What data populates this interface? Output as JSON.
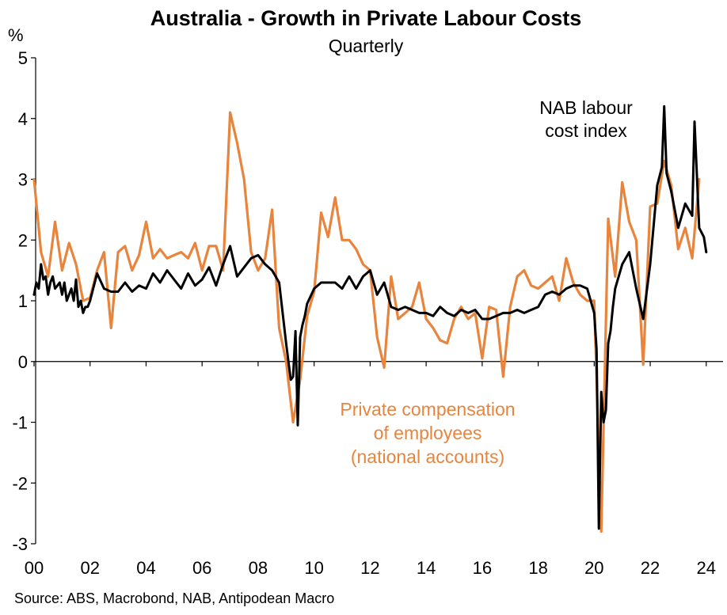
{
  "chart_data": {
    "type": "line",
    "title": "Australia - Growth in Private Labour Costs",
    "subtitle": "Quarterly",
    "ylabel": "%",
    "source": "Source: ABS, Macrobond, NAB, Antipodean Macro",
    "ylim": [
      -3,
      5
    ],
    "xlim": [
      2000,
      2024.6
    ],
    "y_ticks": [
      "5",
      "4",
      "3",
      "2",
      "1",
      "0",
      "-1",
      "-2",
      "-3"
    ],
    "x_ticks": [
      "00",
      "02",
      "04",
      "06",
      "08",
      "10",
      "12",
      "14",
      "16",
      "18",
      "20",
      "22",
      "24"
    ],
    "annotations": {
      "nab_line1": "NAB labour",
      "nab_line2": "cost index",
      "pc_line1": "Private compensation",
      "pc_line2": "of employees",
      "pc_line3": "(national accounts)"
    },
    "series": [
      {
        "key": "nab",
        "color": "#000000",
        "x": [
          2000.0,
          2000.083,
          2000.167,
          2000.25,
          2000.333,
          2000.417,
          2000.5,
          2000.583,
          2000.667,
          2000.75,
          2000.833,
          2000.917,
          2001.0,
          2001.083,
          2001.167,
          2001.25,
          2001.333,
          2001.417,
          2001.5,
          2001.583,
          2001.667,
          2001.75,
          2001.833,
          2001.917,
          2002.0,
          2002.25,
          2002.5,
          2002.75,
          2003.0,
          2003.25,
          2003.5,
          2003.75,
          2004.0,
          2004.25,
          2004.5,
          2004.75,
          2005.0,
          2005.25,
          2005.5,
          2005.75,
          2006.0,
          2006.25,
          2006.5,
          2006.75,
          2007.0,
          2007.25,
          2007.5,
          2007.75,
          2008.0,
          2008.25,
          2008.5,
          2008.75,
          2009.0,
          2009.083,
          2009.167,
          2009.25,
          2009.333,
          2009.417,
          2009.5,
          2009.583,
          2009.667,
          2009.75,
          2010.0,
          2010.25,
          2010.5,
          2010.75,
          2011.0,
          2011.25,
          2011.5,
          2011.75,
          2012.0,
          2012.25,
          2012.5,
          2012.75,
          2013.0,
          2013.25,
          2013.5,
          2013.75,
          2014.0,
          2014.25,
          2014.5,
          2014.75,
          2015.0,
          2015.25,
          2015.5,
          2015.75,
          2016.0,
          2016.25,
          2016.5,
          2016.75,
          2017.0,
          2017.25,
          2017.5,
          2017.75,
          2018.0,
          2018.25,
          2018.5,
          2018.75,
          2019.0,
          2019.25,
          2019.5,
          2019.75,
          2020.0,
          2020.083,
          2020.167,
          2020.25,
          2020.333,
          2020.417,
          2020.5,
          2020.583,
          2020.667,
          2020.75,
          2021.0,
          2021.25,
          2021.5,
          2021.75,
          2022.0,
          2022.25,
          2022.417,
          2022.5,
          2022.583,
          2022.75,
          2023.0,
          2023.25,
          2023.5,
          2023.583,
          2023.75,
          2023.917,
          2024.0
        ],
        "values": [
          1.1,
          1.3,
          1.2,
          1.6,
          1.35,
          1.4,
          1.1,
          1.3,
          1.4,
          1.2,
          1.25,
          1.3,
          1.1,
          1.3,
          1.0,
          1.1,
          1.2,
          1.0,
          1.35,
          0.9,
          1.0,
          0.8,
          0.9,
          0.9,
          1.0,
          1.45,
          1.2,
          1.15,
          1.15,
          1.3,
          1.15,
          1.25,
          1.2,
          1.45,
          1.3,
          1.5,
          1.35,
          1.2,
          1.45,
          1.25,
          1.35,
          1.55,
          1.25,
          1.6,
          1.9,
          1.4,
          1.55,
          1.7,
          1.75,
          1.6,
          1.5,
          1.3,
          0.3,
          0.0,
          -0.3,
          -0.25,
          0.5,
          -1.05,
          0.4,
          0.6,
          0.75,
          0.95,
          1.2,
          1.3,
          1.3,
          1.3,
          1.2,
          1.4,
          1.2,
          1.4,
          1.5,
          1.1,
          1.3,
          0.9,
          0.85,
          0.9,
          0.85,
          0.8,
          0.8,
          0.75,
          0.9,
          0.8,
          0.75,
          0.85,
          0.8,
          0.85,
          0.7,
          0.7,
          0.75,
          0.8,
          0.8,
          0.85,
          0.8,
          0.85,
          0.9,
          1.1,
          1.15,
          1.1,
          1.2,
          1.25,
          1.25,
          1.2,
          0.8,
          0.2,
          -2.75,
          -0.5,
          -1.0,
          -0.8,
          0.3,
          0.5,
          0.9,
          1.2,
          1.6,
          1.8,
          1.2,
          0.7,
          1.6,
          2.9,
          3.2,
          4.2,
          3.1,
          2.8,
          2.2,
          2.6,
          2.4,
          3.95,
          2.2,
          2.05,
          1.8
        ]
      },
      {
        "key": "pc",
        "color": "#E8843C",
        "x": [
          2000.0,
          2000.25,
          2000.5,
          2000.75,
          2001.0,
          2001.25,
          2001.5,
          2001.75,
          2002.0,
          2002.25,
          2002.5,
          2002.75,
          2003.0,
          2003.25,
          2003.5,
          2003.75,
          2004.0,
          2004.25,
          2004.5,
          2004.75,
          2005.0,
          2005.25,
          2005.5,
          2005.75,
          2006.0,
          2006.25,
          2006.5,
          2006.75,
          2007.0,
          2007.25,
          2007.5,
          2007.75,
          2008.0,
          2008.25,
          2008.5,
          2008.75,
          2009.0,
          2009.25,
          2009.5,
          2009.75,
          2010.0,
          2010.25,
          2010.5,
          2010.75,
          2011.0,
          2011.25,
          2011.5,
          2011.75,
          2012.0,
          2012.25,
          2012.5,
          2012.75,
          2013.0,
          2013.25,
          2013.5,
          2013.75,
          2014.0,
          2014.25,
          2014.5,
          2014.75,
          2015.0,
          2015.25,
          2015.5,
          2015.75,
          2016.0,
          2016.25,
          2016.5,
          2016.75,
          2017.0,
          2017.25,
          2017.5,
          2017.75,
          2018.0,
          2018.25,
          2018.5,
          2018.75,
          2019.0,
          2019.25,
          2019.5,
          2019.75,
          2020.0,
          2020.25,
          2020.5,
          2020.75,
          2021.0,
          2021.25,
          2021.5,
          2021.75,
          2022.0,
          2022.25,
          2022.5,
          2022.75,
          2023.0,
          2023.25,
          2023.5,
          2023.75
        ],
        "values": [
          3.0,
          1.8,
          1.4,
          2.3,
          1.5,
          1.95,
          1.6,
          1.0,
          1.05,
          1.5,
          1.8,
          0.55,
          1.8,
          1.9,
          1.5,
          1.75,
          2.3,
          1.7,
          1.85,
          1.7,
          1.75,
          1.8,
          1.7,
          1.95,
          1.5,
          1.9,
          1.9,
          1.5,
          4.1,
          3.6,
          3.0,
          1.8,
          1.5,
          1.7,
          2.5,
          0.55,
          0.0,
          -1.0,
          -0.3,
          0.75,
          1.15,
          2.45,
          2.05,
          2.7,
          2.0,
          2.0,
          1.85,
          1.6,
          1.5,
          0.4,
          -0.1,
          1.4,
          0.7,
          0.8,
          0.9,
          1.3,
          0.7,
          0.55,
          0.35,
          0.3,
          0.7,
          0.9,
          0.7,
          0.8,
          0.05,
          0.9,
          0.85,
          -0.25,
          0.9,
          1.4,
          1.5,
          1.25,
          1.2,
          1.3,
          1.4,
          1.0,
          1.7,
          1.3,
          1.1,
          1.0,
          1.0,
          -2.8,
          2.35,
          1.4,
          2.95,
          2.3,
          2.0,
          -0.05,
          2.55,
          2.6,
          3.3,
          2.9,
          1.85,
          2.2,
          1.7,
          3.0
        ]
      }
    ]
  }
}
